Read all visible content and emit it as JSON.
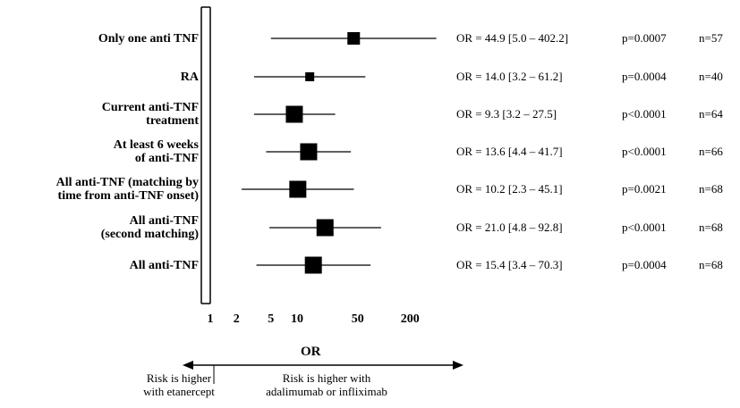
{
  "chart_data": {
    "type": "forest",
    "xlabel": "OR",
    "x_scale": "log",
    "xlim": [
      1,
      350
    ],
    "xticks": [
      1,
      2,
      5,
      10,
      50,
      200
    ],
    "xtick_labels": [
      "1",
      "2",
      "5",
      "10",
      "50",
      "200"
    ],
    "rows": [
      {
        "label": "Only one anti TNF",
        "or": 44.9,
        "ci_low": 5.0,
        "ci_high": 402.2,
        "or_text": "OR = 44.9 [5.0 – 402.2]",
        "p_text": "p=0.0007",
        "n_text": "n=57",
        "box": "medium"
      },
      {
        "label": "RA",
        "or": 14.0,
        "ci_low": 3.2,
        "ci_high": 61.2,
        "or_text": "OR = 14.0 [3.2 – 61.2]",
        "p_text": "p=0.0004",
        "n_text": "n=40",
        "box": "small"
      },
      {
        "label": "Current anti-TNF\ntreatment",
        "or": 9.3,
        "ci_low": 3.2,
        "ci_high": 27.5,
        "or_text": "OR = 9.3 [3.2 – 27.5]",
        "p_text": "p<0.0001",
        "n_text": "n=64",
        "box": "large"
      },
      {
        "label": "At least 6 weeks\nof anti-TNF",
        "or": 13.6,
        "ci_low": 4.4,
        "ci_high": 41.7,
        "or_text": "OR = 13.6 [4.4 – 41.7]",
        "p_text": "p<0.0001",
        "n_text": "n=66",
        "box": "large"
      },
      {
        "label": "All anti-TNF (matching by\ntime from anti-TNF onset)",
        "or": 10.2,
        "ci_low": 2.3,
        "ci_high": 45.1,
        "or_text": "OR = 10.2 [2.3 – 45.1]",
        "p_text": "p=0.0021",
        "n_text": "n=68",
        "box": "large"
      },
      {
        "label": "All anti-TNF\n(second matching)",
        "or": 21.0,
        "ci_low": 4.8,
        "ci_high": 92.8,
        "or_text": "OR = 21.0 [4.8 – 92.8]",
        "p_text": "p<0.0001",
        "n_text": "n=68",
        "box": "large"
      },
      {
        "label": "All anti-TNF",
        "or": 15.4,
        "ci_low": 3.4,
        "ci_high": 70.3,
        "or_text": "OR = 15.4 [3.4 – 70.3]",
        "p_text": "p=0.0004",
        "n_text": "n=68",
        "box": "large"
      }
    ],
    "annotations": {
      "left": "Risk is higher\nwith etanercept",
      "right": "Risk is higher with\nadalimumab or infliximab"
    }
  }
}
